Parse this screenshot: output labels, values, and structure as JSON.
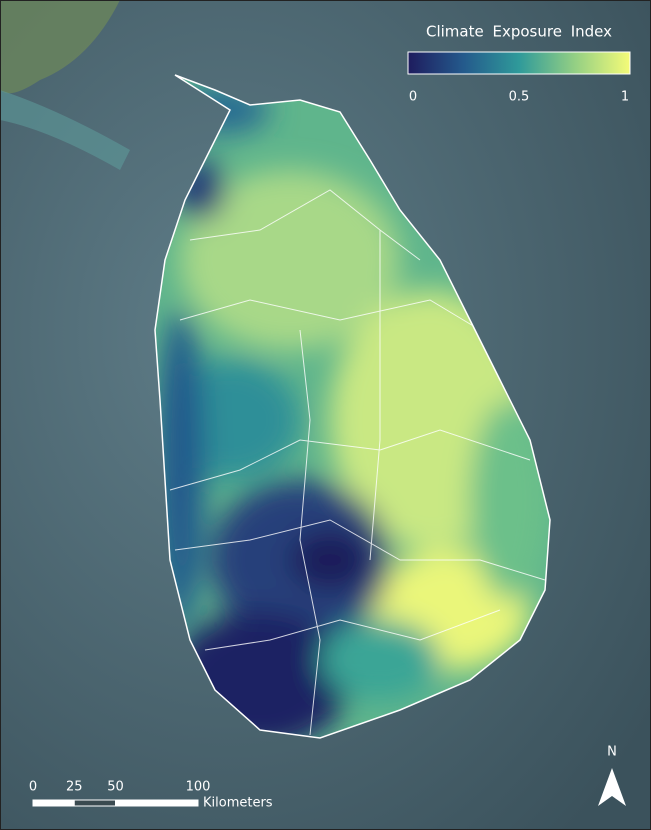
{
  "legend": {
    "title": "Climate Exposure Index",
    "range": [
      0,
      1
    ],
    "ticks": [
      0,
      0.5,
      1
    ]
  },
  "scale_bar": {
    "ticks": [
      0,
      25,
      50,
      100
    ],
    "unit": "Kilometers"
  },
  "north_arrow": "N"
}
